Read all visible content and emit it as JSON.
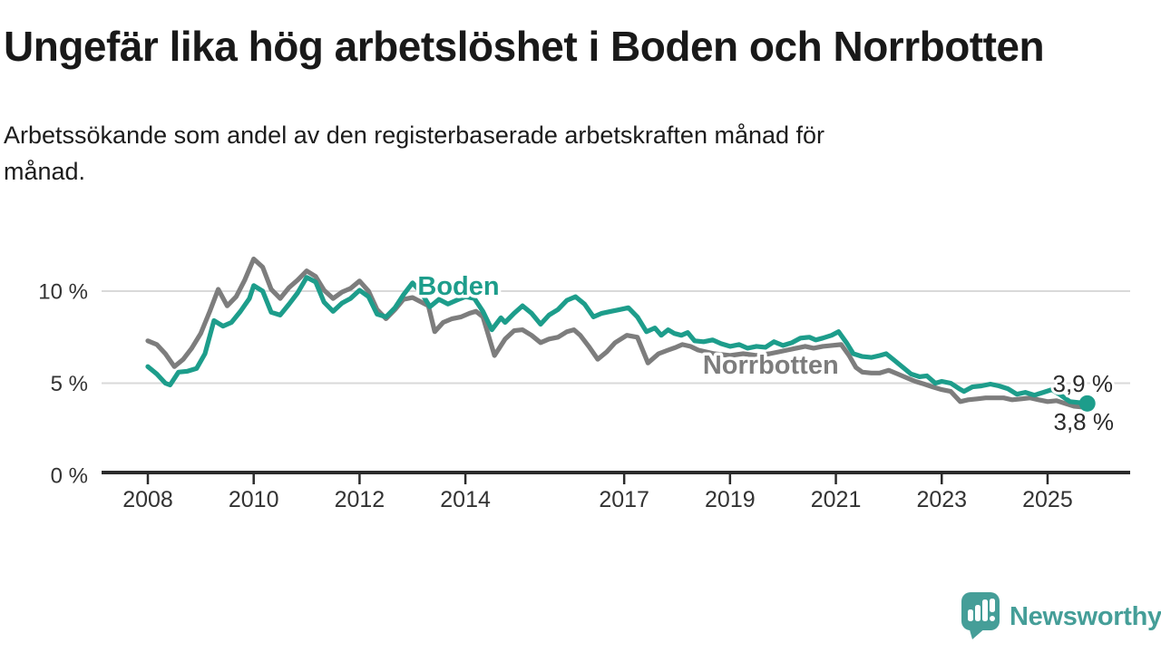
{
  "header": {
    "title": "Ungefär lika hög arbetslöshet i Boden och Norrbotten",
    "subtitle": "Arbetssökande som andel av den registerbaserade arbetskraften månad för månad."
  },
  "branding": {
    "logo_text": "Newsworthy",
    "logo_color": "#459e98"
  },
  "colors": {
    "boden_teal": "#1d9d8b",
    "norrbotten_gray": "#7d7d7d",
    "gridline": "#d9d9d9",
    "axis": "#2b2b2b",
    "tick_label": "#333333",
    "value_label": "#2b2b2b"
  },
  "chart_data": {
    "type": "line",
    "unit": "%",
    "x_axis": {
      "ticks": [
        2008,
        2010,
        2012,
        2014,
        2017,
        2019,
        2021,
        2023,
        2025
      ],
      "range": [
        2007.1,
        2026.4
      ]
    },
    "y_axis": {
      "ticks": [
        0,
        5,
        10
      ],
      "tick_labels": [
        "0 %",
        "5 %",
        "10 %"
      ],
      "gridlines": [
        5,
        10
      ],
      "range": [
        0,
        12.5
      ]
    },
    "series": [
      {
        "name": "Boden",
        "color": "#1d9d8b",
        "end_label": "3,9 %",
        "end_value": 3.9,
        "end_dot": true,
        "points": [
          [
            2008.0,
            5.9
          ],
          [
            2008.17,
            5.5
          ],
          [
            2008.33,
            5.0
          ],
          [
            2008.42,
            4.9
          ],
          [
            2008.58,
            5.6
          ],
          [
            2008.75,
            5.65
          ],
          [
            2008.92,
            5.8
          ],
          [
            2009.08,
            6.6
          ],
          [
            2009.25,
            8.4
          ],
          [
            2009.42,
            8.1
          ],
          [
            2009.58,
            8.3
          ],
          [
            2009.75,
            8.9
          ],
          [
            2009.92,
            9.6
          ],
          [
            2010.0,
            10.3
          ],
          [
            2010.17,
            10.0
          ],
          [
            2010.33,
            8.85
          ],
          [
            2010.5,
            8.7
          ],
          [
            2010.67,
            9.3
          ],
          [
            2010.83,
            9.9
          ],
          [
            2011.0,
            10.75
          ],
          [
            2011.17,
            10.5
          ],
          [
            2011.33,
            9.4
          ],
          [
            2011.5,
            8.9
          ],
          [
            2011.67,
            9.35
          ],
          [
            2011.83,
            9.6
          ],
          [
            2012.0,
            10.05
          ],
          [
            2012.17,
            9.7
          ],
          [
            2012.33,
            8.75
          ],
          [
            2012.5,
            8.6
          ],
          [
            2012.67,
            9.1
          ],
          [
            2012.83,
            9.8
          ],
          [
            2013.0,
            10.45
          ],
          [
            2013.17,
            9.9
          ],
          [
            2013.33,
            9.15
          ],
          [
            2013.5,
            9.55
          ],
          [
            2013.67,
            9.3
          ],
          [
            2013.83,
            9.5
          ],
          [
            2014.0,
            9.7
          ],
          [
            2014.17,
            9.6
          ],
          [
            2014.33,
            8.9
          ],
          [
            2014.5,
            7.9
          ],
          [
            2014.67,
            8.55
          ],
          [
            2014.75,
            8.3
          ],
          [
            2014.92,
            8.8
          ],
          [
            2015.08,
            9.2
          ],
          [
            2015.25,
            8.8
          ],
          [
            2015.42,
            8.2
          ],
          [
            2015.58,
            8.7
          ],
          [
            2015.75,
            9.0
          ],
          [
            2015.92,
            9.5
          ],
          [
            2016.08,
            9.7
          ],
          [
            2016.25,
            9.3
          ],
          [
            2016.42,
            8.6
          ],
          [
            2016.58,
            8.8
          ],
          [
            2016.75,
            8.9
          ],
          [
            2016.92,
            9.0
          ],
          [
            2017.08,
            9.1
          ],
          [
            2017.25,
            8.6
          ],
          [
            2017.42,
            7.8
          ],
          [
            2017.58,
            8.0
          ],
          [
            2017.7,
            7.6
          ],
          [
            2017.83,
            7.9
          ],
          [
            2017.95,
            7.7
          ],
          [
            2018.08,
            7.6
          ],
          [
            2018.2,
            7.75
          ],
          [
            2018.33,
            7.3
          ],
          [
            2018.5,
            7.25
          ],
          [
            2018.67,
            7.35
          ],
          [
            2018.83,
            7.15
          ],
          [
            2019.0,
            7.0
          ],
          [
            2019.17,
            7.1
          ],
          [
            2019.33,
            6.9
          ],
          [
            2019.5,
            7.0
          ],
          [
            2019.67,
            6.95
          ],
          [
            2019.83,
            7.25
          ],
          [
            2020.0,
            7.05
          ],
          [
            2020.17,
            7.2
          ],
          [
            2020.33,
            7.45
          ],
          [
            2020.5,
            7.5
          ],
          [
            2020.62,
            7.35
          ],
          [
            2020.75,
            7.45
          ],
          [
            2020.92,
            7.6
          ],
          [
            2021.05,
            7.8
          ],
          [
            2021.2,
            7.2
          ],
          [
            2021.33,
            6.6
          ],
          [
            2021.5,
            6.45
          ],
          [
            2021.67,
            6.4
          ],
          [
            2021.83,
            6.5
          ],
          [
            2021.95,
            6.6
          ],
          [
            2022.08,
            6.3
          ],
          [
            2022.25,
            5.9
          ],
          [
            2022.42,
            5.5
          ],
          [
            2022.58,
            5.35
          ],
          [
            2022.72,
            5.4
          ],
          [
            2022.88,
            5.0
          ],
          [
            2023.0,
            5.1
          ],
          [
            2023.17,
            5.0
          ],
          [
            2023.33,
            4.7
          ],
          [
            2023.42,
            4.55
          ],
          [
            2023.58,
            4.8
          ],
          [
            2023.75,
            4.85
          ],
          [
            2023.92,
            4.95
          ],
          [
            2024.08,
            4.85
          ],
          [
            2024.25,
            4.7
          ],
          [
            2024.42,
            4.4
          ],
          [
            2024.58,
            4.5
          ],
          [
            2024.75,
            4.35
          ],
          [
            2024.92,
            4.5
          ],
          [
            2025.08,
            4.65
          ],
          [
            2025.25,
            4.35
          ],
          [
            2025.42,
            4.0
          ],
          [
            2025.58,
            3.95
          ],
          [
            2025.75,
            3.9
          ]
        ]
      },
      {
        "name": "Norrbotten",
        "color": "#7d7d7d",
        "end_label": "3,8 %",
        "end_value": 3.8,
        "end_dot": false,
        "points": [
          [
            2008.0,
            7.3
          ],
          [
            2008.17,
            7.1
          ],
          [
            2008.33,
            6.6
          ],
          [
            2008.5,
            5.9
          ],
          [
            2008.67,
            6.3
          ],
          [
            2008.83,
            6.9
          ],
          [
            2009.0,
            7.7
          ],
          [
            2009.17,
            8.9
          ],
          [
            2009.33,
            10.1
          ],
          [
            2009.5,
            9.2
          ],
          [
            2009.67,
            9.7
          ],
          [
            2009.83,
            10.6
          ],
          [
            2010.0,
            11.75
          ],
          [
            2010.17,
            11.3
          ],
          [
            2010.33,
            10.1
          ],
          [
            2010.5,
            9.6
          ],
          [
            2010.67,
            10.2
          ],
          [
            2010.83,
            10.6
          ],
          [
            2011.0,
            11.1
          ],
          [
            2011.17,
            10.8
          ],
          [
            2011.33,
            10.05
          ],
          [
            2011.5,
            9.6
          ],
          [
            2011.67,
            9.95
          ],
          [
            2011.83,
            10.15
          ],
          [
            2012.0,
            10.55
          ],
          [
            2012.17,
            10.0
          ],
          [
            2012.33,
            9.0
          ],
          [
            2012.5,
            8.5
          ],
          [
            2012.67,
            9.0
          ],
          [
            2012.83,
            9.55
          ],
          [
            2013.0,
            9.65
          ],
          [
            2013.17,
            9.4
          ],
          [
            2013.3,
            9.2
          ],
          [
            2013.42,
            7.8
          ],
          [
            2013.58,
            8.3
          ],
          [
            2013.75,
            8.5
          ],
          [
            2013.92,
            8.6
          ],
          [
            2014.08,
            8.8
          ],
          [
            2014.2,
            8.9
          ],
          [
            2014.33,
            8.6
          ],
          [
            2014.55,
            6.5
          ],
          [
            2014.75,
            7.4
          ],
          [
            2014.92,
            7.85
          ],
          [
            2015.08,
            7.9
          ],
          [
            2015.25,
            7.6
          ],
          [
            2015.42,
            7.2
          ],
          [
            2015.58,
            7.4
          ],
          [
            2015.75,
            7.5
          ],
          [
            2015.92,
            7.8
          ],
          [
            2016.05,
            7.9
          ],
          [
            2016.17,
            7.6
          ],
          [
            2016.33,
            7.0
          ],
          [
            2016.5,
            6.3
          ],
          [
            2016.67,
            6.7
          ],
          [
            2016.83,
            7.2
          ],
          [
            2017.05,
            7.6
          ],
          [
            2017.25,
            7.5
          ],
          [
            2017.45,
            6.1
          ],
          [
            2017.65,
            6.6
          ],
          [
            2017.83,
            6.8
          ],
          [
            2017.98,
            6.95
          ],
          [
            2018.1,
            7.1
          ],
          [
            2018.25,
            7.0
          ],
          [
            2018.4,
            6.8
          ],
          [
            2018.55,
            6.7
          ],
          [
            2018.7,
            6.6
          ],
          [
            2018.85,
            6.55
          ],
          [
            2019.0,
            6.5
          ],
          [
            2019.25,
            6.6
          ],
          [
            2019.5,
            6.5
          ],
          [
            2019.75,
            6.6
          ],
          [
            2019.92,
            6.7
          ],
          [
            2020.08,
            6.8
          ],
          [
            2020.25,
            6.9
          ],
          [
            2020.42,
            7.0
          ],
          [
            2020.58,
            6.9
          ],
          [
            2020.75,
            7.0
          ],
          [
            2020.92,
            7.05
          ],
          [
            2021.1,
            7.1
          ],
          [
            2021.25,
            6.5
          ],
          [
            2021.38,
            5.85
          ],
          [
            2021.5,
            5.6
          ],
          [
            2021.67,
            5.55
          ],
          [
            2021.83,
            5.55
          ],
          [
            2022.0,
            5.7
          ],
          [
            2022.17,
            5.5
          ],
          [
            2022.33,
            5.3
          ],
          [
            2022.5,
            5.1
          ],
          [
            2022.67,
            4.95
          ],
          [
            2022.83,
            4.8
          ],
          [
            2023.0,
            4.65
          ],
          [
            2023.17,
            4.55
          ],
          [
            2023.35,
            4.0
          ],
          [
            2023.5,
            4.1
          ],
          [
            2023.67,
            4.15
          ],
          [
            2023.83,
            4.2
          ],
          [
            2024.0,
            4.2
          ],
          [
            2024.17,
            4.2
          ],
          [
            2024.33,
            4.1
          ],
          [
            2024.5,
            4.15
          ],
          [
            2024.67,
            4.2
          ],
          [
            2024.83,
            4.1
          ],
          [
            2025.0,
            4.0
          ],
          [
            2025.17,
            4.05
          ],
          [
            2025.33,
            3.9
          ],
          [
            2025.5,
            3.75
          ],
          [
            2025.67,
            3.7
          ],
          [
            2025.75,
            3.8
          ]
        ]
      }
    ],
    "series_labels": [
      {
        "text": "Boden",
        "x_year": 2013.87,
        "value": 10.3,
        "color": "#1d9d8b"
      },
      {
        "text": "Norrbotten",
        "x_year": 2019.77,
        "value": 6.0,
        "color": "#7d7d7d"
      }
    ],
    "legend_position": "inline-labels",
    "grid": "horizontal-only"
  }
}
